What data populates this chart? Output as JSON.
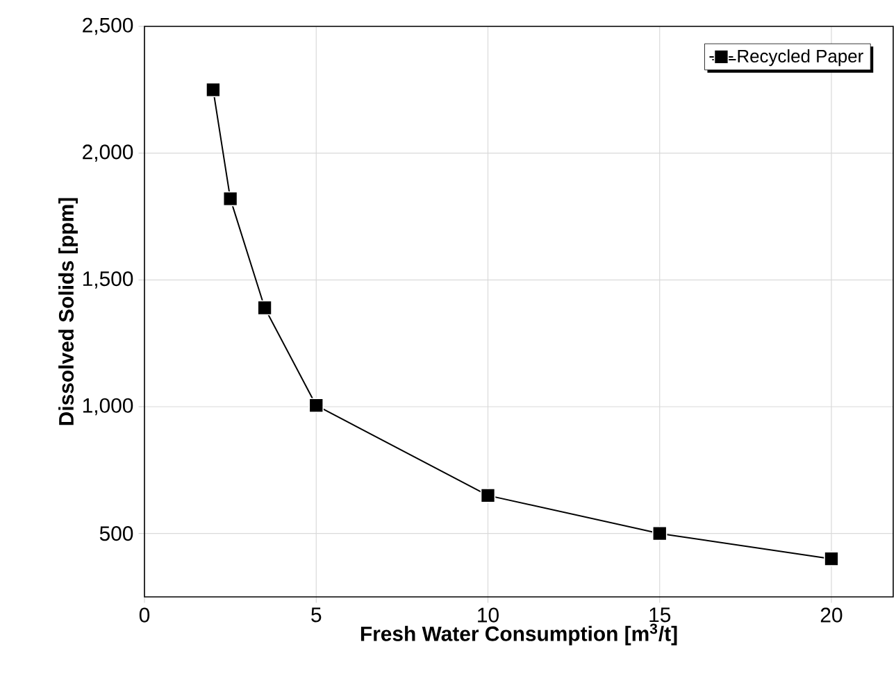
{
  "chart_data": {
    "type": "line",
    "xlabel": "Fresh Water Consumption [m$^{3}$/t]",
    "ylabel": "Dissolved Solids [ppm]",
    "x": [
      2,
      2.5,
      3.5,
      5,
      10,
      15,
      20
    ],
    "series": [
      {
        "name": "Recycled Paper",
        "color": "#000000",
        "values": [
          2250,
          1820,
          1390,
          1005,
          650,
          500,
          400
        ]
      }
    ],
    "xlim": [
      0,
      21.8
    ],
    "ylim": [
      250,
      2500
    ],
    "xticks": [
      0,
      5,
      10,
      15,
      20
    ],
    "yticks": [
      {
        "value": 500,
        "label": "500"
      },
      {
        "value": 1000,
        "label": "1,000"
      },
      {
        "value": 1500,
        "label": "1,500"
      },
      {
        "value": 2000,
        "label": "2,000"
      },
      {
        "value": 2500,
        "label": "2,500"
      }
    ],
    "grid": true,
    "legend": "top right",
    "marker": "square",
    "line_style": "solid"
  }
}
